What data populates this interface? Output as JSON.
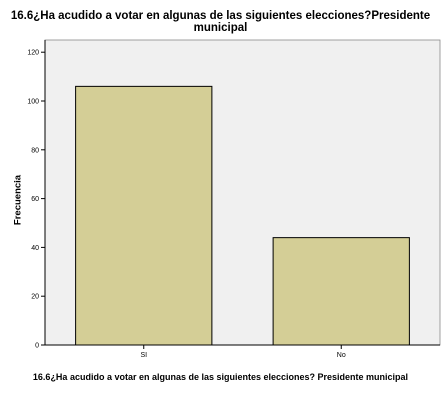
{
  "chart_data": {
    "type": "bar",
    "title": "16.6¿Ha acudido a votar en algunas de las siguientes elecciones?Presidente municipal",
    "xlabel": "16.6¿Ha acudido a votar en algunas de las siguientes elecciones? Presidente municipal",
    "ylabel": "Frecuencia",
    "categories": [
      "SI",
      "No"
    ],
    "values": [
      106,
      44
    ],
    "ylim": [
      0,
      125
    ],
    "yticks": [
      0,
      20,
      40,
      60,
      80,
      100,
      120
    ],
    "grid": false,
    "legend": "none",
    "colors": {
      "bar": "#d4ce96",
      "bar_stroke": "#000000",
      "plot_bg": "#f0f0f0",
      "axis": "#000000"
    }
  }
}
